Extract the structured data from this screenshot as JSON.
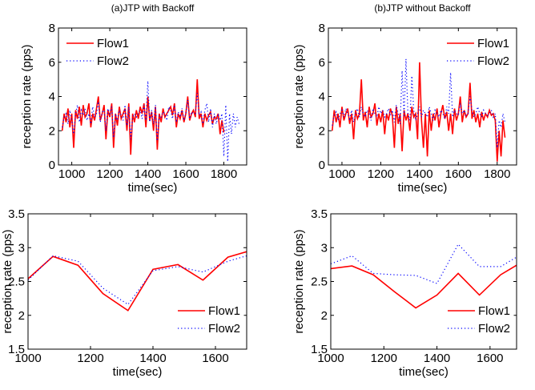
{
  "colors": {
    "flow1": "#ff0000",
    "flow2": "#0000ff"
  },
  "chart_data": [
    {
      "type": "line",
      "title": "(a)JTP with Backoff",
      "xlabel": "time(sec)",
      "ylabel": "reception rate (pps)",
      "xlim": [
        930,
        1920
      ],
      "ylim": [
        0,
        8
      ],
      "xticks": [
        1000,
        1200,
        1400,
        1600,
        1800
      ],
      "yticks": [
        0,
        2,
        4,
        6,
        8
      ],
      "legend": "top-left",
      "series": [
        {
          "name": "Flow1",
          "style": "solid",
          "color": "#ff0000",
          "x": [
            950,
            960,
            970,
            980,
            990,
            1000,
            1010,
            1020,
            1030,
            1040,
            1050,
            1060,
            1070,
            1080,
            1090,
            1100,
            1110,
            1120,
            1130,
            1140,
            1150,
            1160,
            1170,
            1180,
            1190,
            1200,
            1210,
            1220,
            1230,
            1240,
            1250,
            1260,
            1270,
            1280,
            1290,
            1300,
            1310,
            1320,
            1330,
            1340,
            1350,
            1360,
            1370,
            1380,
            1390,
            1400,
            1410,
            1420,
            1430,
            1440,
            1450,
            1460,
            1470,
            1480,
            1490,
            1500,
            1510,
            1520,
            1530,
            1540,
            1550,
            1560,
            1570,
            1580,
            1590,
            1600,
            1610,
            1620,
            1630,
            1640,
            1650,
            1660,
            1670,
            1680,
            1690,
            1700,
            1710,
            1720,
            1730,
            1740,
            1750,
            1760,
            1770,
            1780,
            1790,
            1800
          ],
          "y": [
            2.0,
            3.0,
            2.5,
            3.3,
            2.2,
            3.0,
            1.0,
            3.2,
            2.7,
            3.4,
            2.3,
            3.5,
            2.8,
            3.0,
            3.6,
            2.2,
            3.0,
            2.6,
            3.3,
            4.0,
            2.6,
            3.0,
            3.5,
            1.5,
            3.2,
            2.8,
            3.6,
            1.0,
            3.0,
            2.3,
            3.4,
            2.7,
            3.0,
            3.3,
            2.0,
            3.6,
            0.6,
            3.0,
            2.5,
            3.2,
            2.7,
            3.4,
            3.0,
            3.6,
            2.2,
            4.0,
            2.6,
            3.1,
            2.0,
            3.4,
            0.9,
            3.0,
            2.5,
            3.3,
            2.8,
            3.0,
            3.2,
            3.4,
            2.9,
            3.6,
            2.2,
            3.0,
            2.7,
            3.2,
            2.5,
            3.0,
            4.0,
            2.6,
            3.0,
            3.2,
            2.8,
            5.0,
            2.7,
            3.0,
            2.2,
            3.0,
            2.6,
            2.9,
            3.1,
            2.4,
            2.8,
            2.7,
            3.0,
            1.8,
            2.6,
            1.9
          ]
        },
        {
          "name": "Flow2",
          "style": "dotted",
          "color": "#0000ff",
          "x": [
            950,
            960,
            970,
            980,
            990,
            1000,
            1010,
            1020,
            1030,
            1040,
            1050,
            1060,
            1070,
            1080,
            1090,
            1100,
            1110,
            1120,
            1130,
            1140,
            1150,
            1160,
            1170,
            1180,
            1190,
            1200,
            1210,
            1220,
            1230,
            1240,
            1250,
            1260,
            1270,
            1280,
            1290,
            1300,
            1310,
            1320,
            1330,
            1340,
            1350,
            1360,
            1370,
            1380,
            1390,
            1400,
            1410,
            1420,
            1430,
            1440,
            1450,
            1460,
            1470,
            1480,
            1490,
            1500,
            1510,
            1520,
            1530,
            1540,
            1550,
            1560,
            1570,
            1580,
            1590,
            1600,
            1610,
            1620,
            1630,
            1640,
            1650,
            1660,
            1670,
            1680,
            1690,
            1700,
            1710,
            1720,
            1730,
            1740,
            1750,
            1760,
            1770,
            1780,
            1790,
            1800,
            1810,
            1820,
            1830,
            1840,
            1850,
            1860,
            1870,
            1880
          ],
          "y": [
            2.2,
            2.8,
            3.0,
            2.4,
            3.2,
            2.6,
            1.8,
            3.0,
            3.5,
            2.5,
            3.2,
            2.9,
            3.3,
            2.6,
            3.0,
            2.4,
            3.4,
            2.8,
            3.0,
            3.7,
            2.5,
            3.1,
            3.2,
            2.0,
            3.3,
            3.0,
            3.4,
            1.6,
            3.0,
            2.6,
            3.2,
            2.9,
            2.6,
            3.5,
            2.3,
            3.4,
            1.5,
            2.8,
            3.0,
            2.8,
            3.0,
            3.2,
            2.7,
            3.5,
            2.6,
            4.9,
            2.5,
            3.2,
            2.4,
            3.5,
            1.4,
            2.9,
            2.8,
            3.1,
            3.0,
            2.6,
            3.4,
            3.2,
            2.7,
            3.5,
            2.5,
            3.1,
            2.8,
            3.3,
            2.6,
            3.0,
            3.8,
            2.7,
            3.1,
            3.0,
            3.0,
            4.2,
            2.9,
            3.1,
            2.4,
            3.2,
            3.6,
            2.5,
            3.3,
            2.2,
            3.0,
            2.4,
            2.9,
            2.6,
            3.0,
            0.5,
            3.5,
            0.2,
            3.0,
            1.8,
            3.0,
            2.2,
            2.8,
            2.4
          ]
        }
      ]
    },
    {
      "type": "line",
      "title": "(b)JTP without Backoff",
      "xlabel": "time(sec)",
      "ylabel": "reception rate (pps)",
      "xlim": [
        930,
        1900
      ],
      "ylim": [
        0,
        8
      ],
      "xticks": [
        1000,
        1200,
        1400,
        1600,
        1800
      ],
      "yticks": [
        0,
        2,
        4,
        6,
        8
      ],
      "legend": "top-right",
      "series": [
        {
          "name": "Flow1",
          "style": "solid",
          "color": "#ff0000",
          "x": [
            950,
            960,
            970,
            980,
            990,
            1000,
            1010,
            1020,
            1030,
            1040,
            1050,
            1060,
            1070,
            1080,
            1090,
            1100,
            1110,
            1120,
            1130,
            1140,
            1150,
            1160,
            1170,
            1180,
            1190,
            1200,
            1210,
            1220,
            1230,
            1240,
            1250,
            1260,
            1270,
            1280,
            1290,
            1300,
            1310,
            1320,
            1330,
            1340,
            1350,
            1360,
            1370,
            1380,
            1390,
            1400,
            1410,
            1420,
            1430,
            1440,
            1450,
            1460,
            1470,
            1480,
            1490,
            1500,
            1510,
            1520,
            1530,
            1540,
            1550,
            1560,
            1570,
            1580,
            1590,
            1600,
            1610,
            1620,
            1630,
            1640,
            1650,
            1660,
            1670,
            1680,
            1690,
            1700,
            1710,
            1720,
            1730,
            1740,
            1750,
            1760,
            1770,
            1780,
            1790,
            1800,
            1810,
            1820,
            1830,
            1840
          ],
          "y": [
            2.0,
            3.2,
            2.5,
            3.0,
            2.2,
            3.4,
            2.6,
            3.0,
            3.3,
            2.4,
            3.0,
            1.5,
            3.2,
            2.7,
            3.0,
            5.0,
            2.6,
            3.1,
            2.2,
            3.4,
            2.8,
            3.0,
            3.6,
            2.3,
            3.0,
            2.5,
            3.2,
            1.8,
            3.0,
            2.6,
            3.3,
            2.9,
            1.0,
            3.4,
            2.4,
            3.0,
            0.8,
            3.2,
            2.6,
            3.0,
            2.0,
            3.4,
            2.8,
            3.0,
            1.5,
            6.0,
            2.6,
            1.0,
            3.0,
            0.5,
            3.2,
            2.0,
            3.0,
            2.6,
            3.3,
            2.2,
            3.0,
            3.5,
            2.7,
            3.1,
            2.0,
            3.0,
            1.8,
            3.3,
            2.6,
            3.0,
            4.0,
            2.5,
            3.2,
            2.8,
            3.0,
            4.8,
            2.7,
            3.2,
            2.5,
            3.0,
            2.2,
            3.1,
            2.6,
            3.0,
            2.8,
            3.2,
            2.9,
            3.0,
            2.6,
            0.2,
            2.0,
            0.5,
            2.6,
            1.6
          ]
        },
        {
          "name": "Flow2",
          "style": "dotted",
          "color": "#0000ff",
          "x": [
            950,
            960,
            970,
            980,
            990,
            1000,
            1010,
            1020,
            1030,
            1040,
            1050,
            1060,
            1070,
            1080,
            1090,
            1100,
            1110,
            1120,
            1130,
            1140,
            1150,
            1160,
            1170,
            1180,
            1190,
            1200,
            1210,
            1220,
            1230,
            1240,
            1250,
            1260,
            1270,
            1280,
            1290,
            1300,
            1310,
            1320,
            1330,
            1340,
            1350,
            1360,
            1370,
            1380,
            1390,
            1400,
            1410,
            1420,
            1430,
            1440,
            1450,
            1460,
            1470,
            1480,
            1490,
            1500,
            1510,
            1520,
            1530,
            1540,
            1550,
            1560,
            1570,
            1580,
            1590,
            1600,
            1610,
            1620,
            1630,
            1640,
            1650,
            1660,
            1670,
            1680,
            1690,
            1700,
            1710,
            1720,
            1730,
            1740,
            1750,
            1760,
            1770,
            1780,
            1790,
            1800,
            1810,
            1820,
            1830,
            1840
          ],
          "y": [
            2.3,
            2.9,
            3.1,
            2.6,
            3.0,
            3.2,
            2.8,
            3.3,
            3.0,
            2.7,
            3.2,
            2.5,
            3.0,
            3.3,
            2.8,
            3.4,
            3.0,
            2.8,
            3.2,
            3.0,
            2.6,
            3.3,
            3.0,
            2.8,
            3.4,
            3.0,
            3.2,
            2.8,
            3.0,
            3.3,
            2.9,
            3.2,
            2.5,
            3.5,
            3.0,
            2.4,
            5.5,
            2.8,
            6.2,
            3.0,
            2.6,
            5.2,
            3.2,
            2.6,
            3.0,
            3.4,
            2.8,
            3.2,
            3.0,
            2.8,
            3.4,
            3.0,
            2.6,
            3.2,
            3.0,
            2.8,
            3.2,
            3.0,
            2.7,
            3.4,
            3.0,
            5.4,
            2.8,
            3.2,
            3.0,
            2.9,
            3.6,
            3.0,
            3.2,
            2.9,
            3.0,
            4.0,
            3.2,
            2.8,
            3.0,
            3.4,
            3.0,
            2.8,
            3.2,
            3.0,
            2.9,
            3.0,
            3.2,
            2.8,
            3.0,
            1.0,
            2.6,
            2.2,
            3.0,
            2.5
          ]
        }
      ]
    },
    {
      "type": "line",
      "title": "",
      "xlabel": "time(sec)",
      "ylabel": "reception rate (pps)",
      "xlim": [
        1000,
        1700
      ],
      "ylim": [
        1.5,
        3.5
      ],
      "xticks": [
        1000,
        1200,
        1400,
        1600
      ],
      "yticks": [
        1.5,
        2,
        2.5,
        3,
        3.5
      ],
      "legend": "bottom-right",
      "series": [
        {
          "name": "Flow1",
          "style": "solid",
          "color": "#ff0000",
          "x": [
            1000,
            1080,
            1160,
            1240,
            1320,
            1400,
            1480,
            1560,
            1640,
            1700
          ],
          "y": [
            2.54,
            2.87,
            2.74,
            2.32,
            2.07,
            2.68,
            2.75,
            2.52,
            2.86,
            2.94
          ]
        },
        {
          "name": "Flow2",
          "style": "dotted",
          "color": "#0000ff",
          "x": [
            1000,
            1080,
            1160,
            1240,
            1320,
            1400,
            1480,
            1560,
            1640,
            1700
          ],
          "y": [
            2.52,
            2.88,
            2.8,
            2.4,
            2.16,
            2.66,
            2.72,
            2.64,
            2.8,
            2.88
          ]
        }
      ]
    },
    {
      "type": "line",
      "title": "",
      "xlabel": "time(sec)",
      "ylabel": "reception rate (pps)",
      "xlim": [
        1000,
        1700
      ],
      "ylim": [
        1.5,
        3.5
      ],
      "xticks": [
        1000,
        1200,
        1400,
        1600
      ],
      "yticks": [
        1.5,
        2,
        2.5,
        3,
        3.5
      ],
      "legend": "bottom-right",
      "series": [
        {
          "name": "Flow1",
          "style": "solid",
          "color": "#ff0000",
          "x": [
            1000,
            1080,
            1160,
            1240,
            1320,
            1400,
            1480,
            1560,
            1640,
            1700
          ],
          "y": [
            2.69,
            2.73,
            2.6,
            2.35,
            2.11,
            2.3,
            2.62,
            2.3,
            2.6,
            2.74
          ]
        },
        {
          "name": "Flow2",
          "style": "dotted",
          "color": "#0000ff",
          "x": [
            1000,
            1080,
            1160,
            1240,
            1320,
            1400,
            1480,
            1560,
            1640,
            1700
          ],
          "y": [
            2.76,
            2.88,
            2.62,
            2.6,
            2.59,
            2.47,
            3.05,
            2.72,
            2.72,
            2.86
          ]
        }
      ]
    }
  ]
}
